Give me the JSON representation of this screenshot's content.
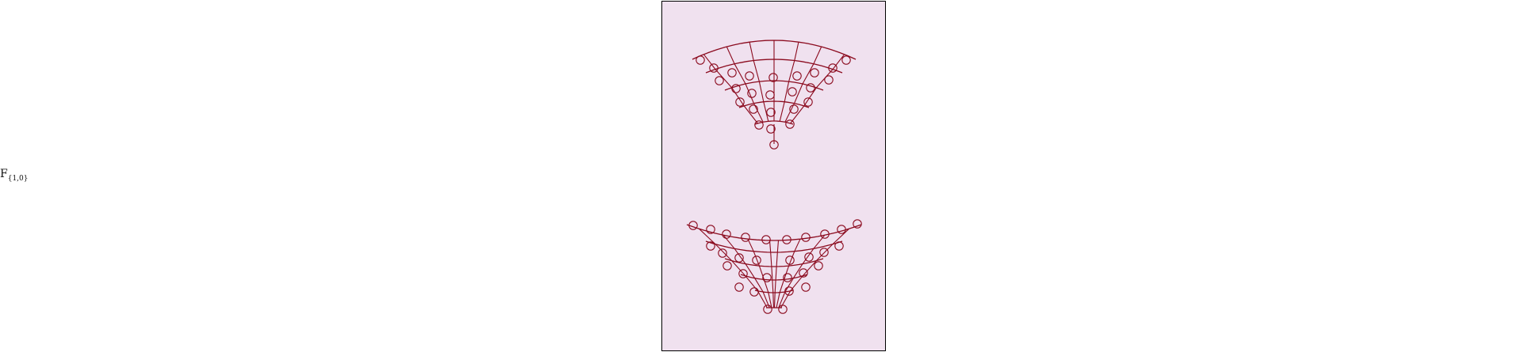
{
  "label": {
    "main": "F",
    "subscript": "{1,0}"
  },
  "colors": {
    "background": "#ffffff",
    "panel": "#f0e1ef",
    "panel_border": "#000000",
    "mesh": "#8b0a1e"
  },
  "figures": [
    {
      "name": "mesh-top",
      "orientation": "down"
    },
    {
      "name": "mesh-bottom",
      "orientation": "up"
    }
  ]
}
